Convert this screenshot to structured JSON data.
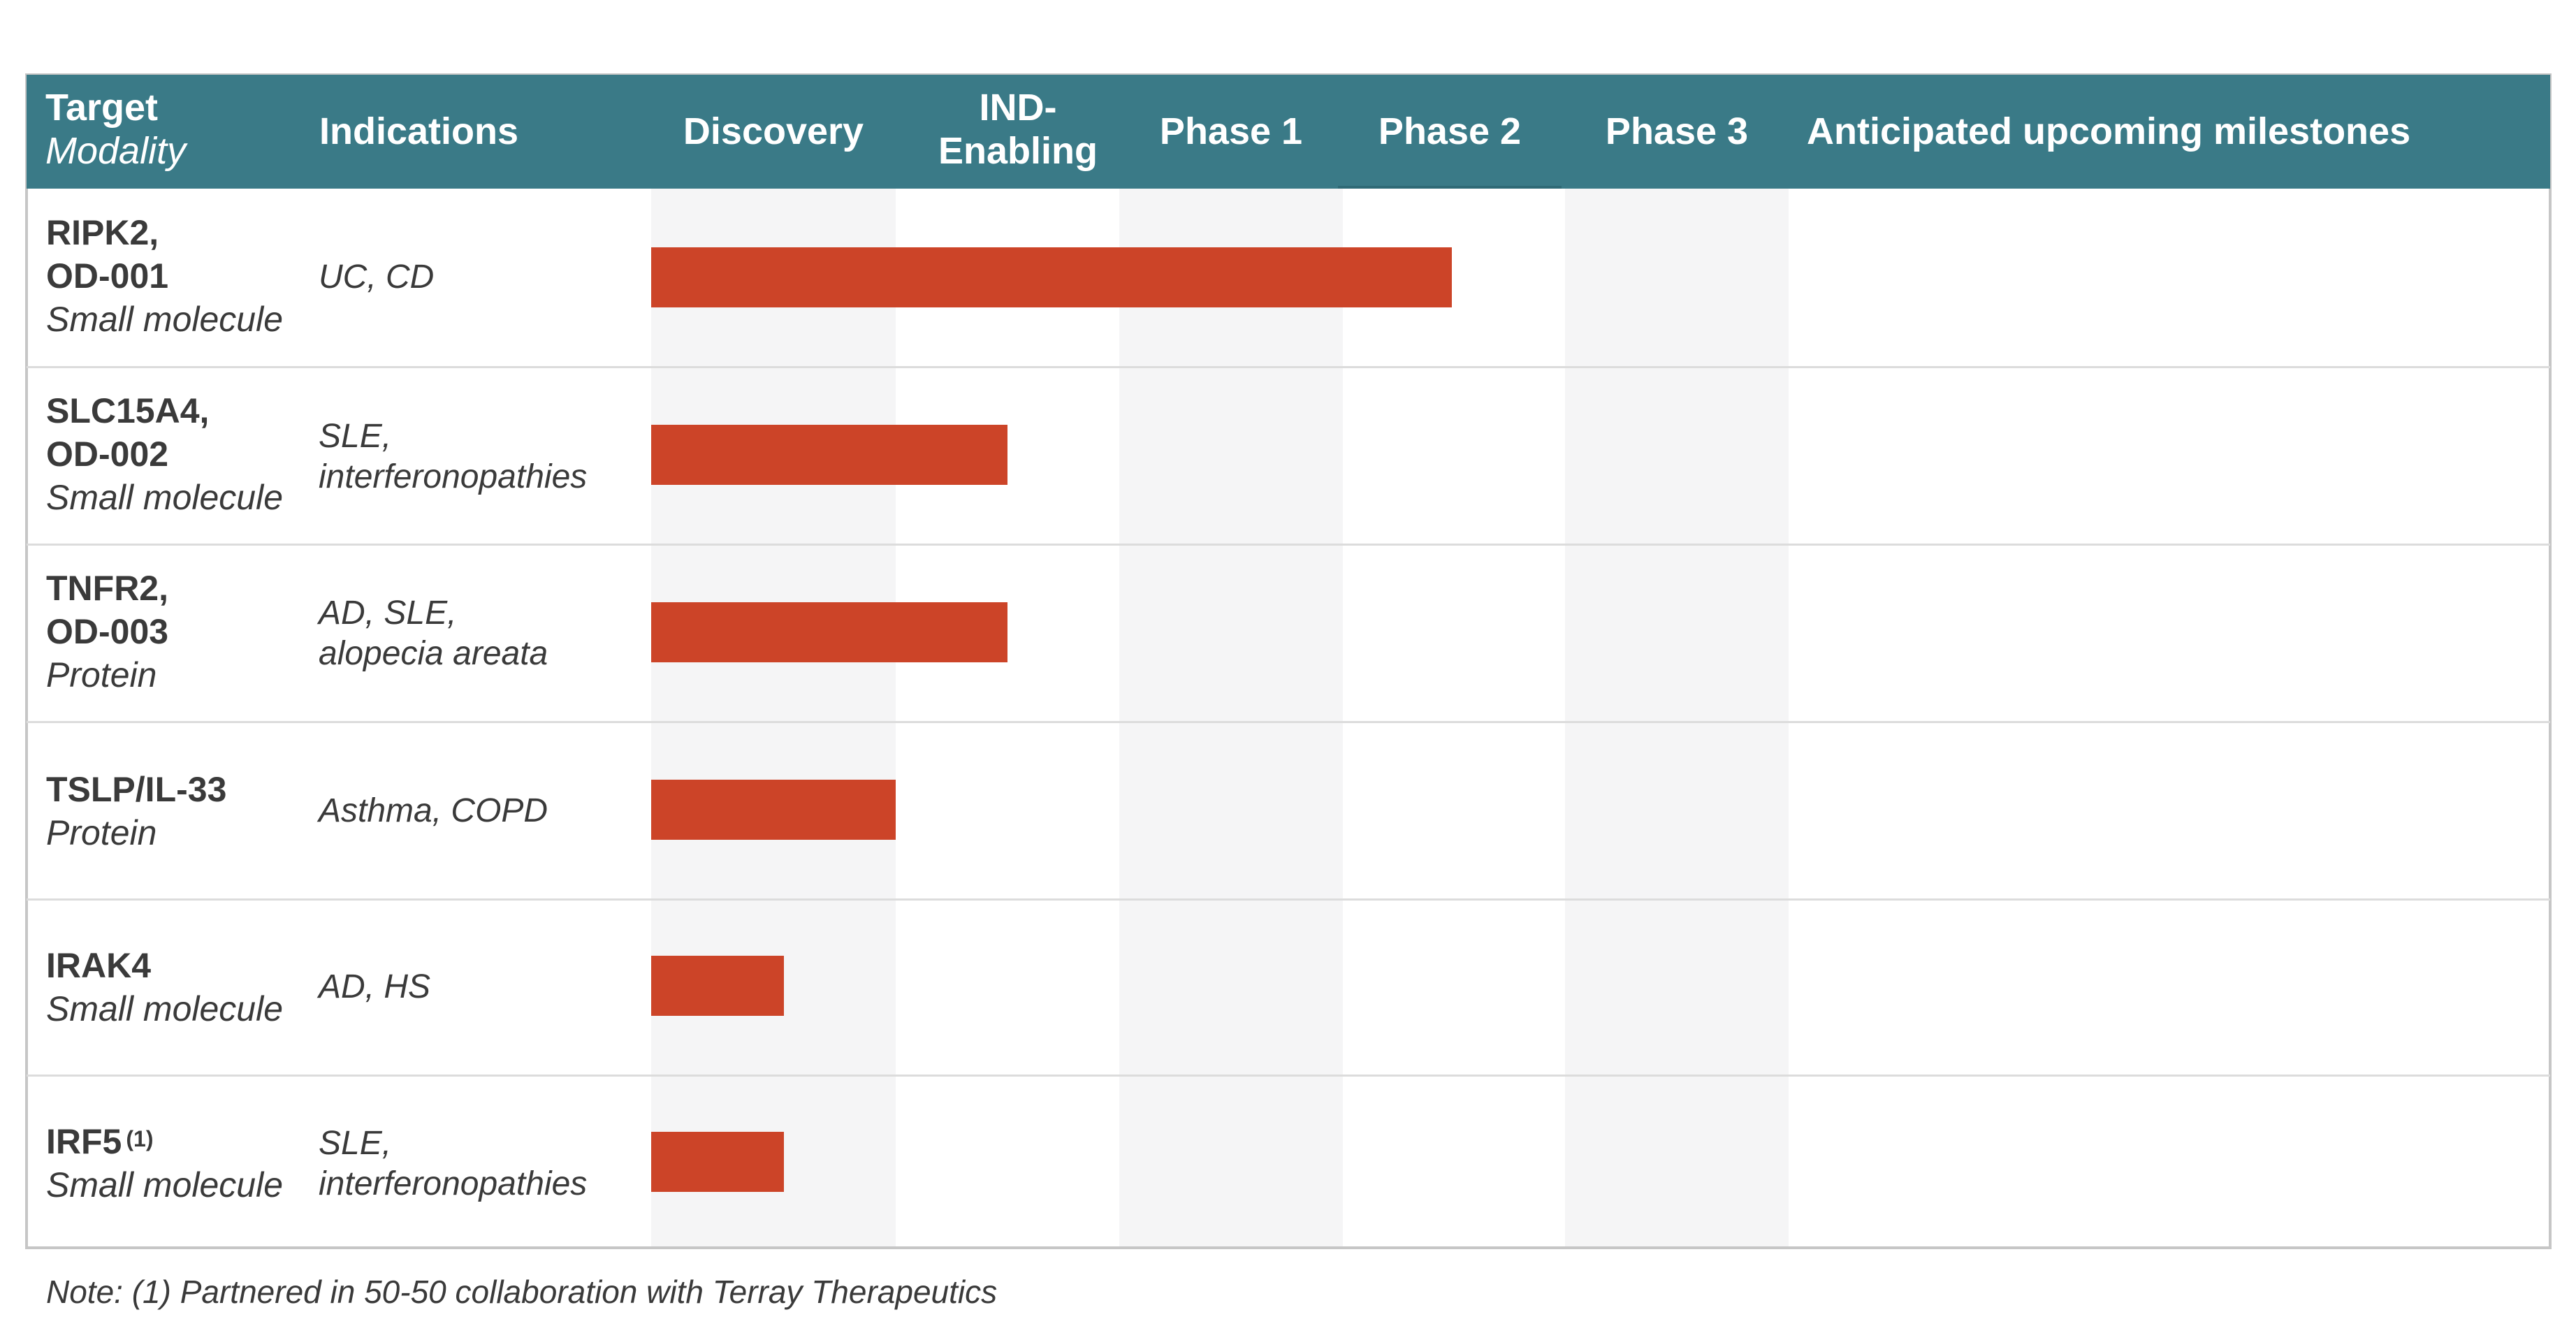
{
  "header": {
    "target_label": "Target",
    "modality_label": "Modality",
    "indications_label": "Indications",
    "stages": [
      "Discovery",
      "IND-",
      "Enabling",
      "Phase 1",
      "Phase 2",
      "Phase 3"
    ],
    "milestones_label": "Anticipated upcoming milestones"
  },
  "stage_order": [
    "Discovery",
    "IND-Enabling",
    "Phase 1",
    "Phase 2",
    "Phase 3"
  ],
  "rows": [
    {
      "target_line1": "RIPK2,",
      "target_line2": "OD-001",
      "modality": "Small molecule",
      "indication_line1": "UC, CD",
      "indication_line2": "",
      "progress_to_stage": "Phase 2"
    },
    {
      "target_line1": "SLC15A4,",
      "target_line2": "OD-002",
      "modality": "Small molecule",
      "indication_line1": "SLE,",
      "indication_line2": "interferonopathies",
      "progress_to_stage": "IND-Enabling"
    },
    {
      "target_line1": "TNFR2,",
      "target_line2": "OD-003",
      "modality": "Protein",
      "indication_line1": "AD, SLE,",
      "indication_line2": "alopecia areata",
      "progress_to_stage": "IND-Enabling"
    },
    {
      "target_line1": "TSLP/IL-33",
      "target_line2": "",
      "modality": "Protein",
      "indication_line1": "Asthma, COPD",
      "indication_line2": "",
      "progress_to_stage": "Discovery"
    },
    {
      "target_line1": "IRAK4",
      "target_line2": "",
      "modality": "Small molecule",
      "indication_line1": "AD, HS",
      "indication_line2": "",
      "progress_to_stage": "Discovery (partial)"
    },
    {
      "target_line1": "IRF5",
      "target_sup": "(1)",
      "target_line2": "",
      "modality": "Small molecule",
      "indication_line1": "SLE,",
      "indication_line2": "interferonopathies",
      "progress_to_stage": "Discovery (partial)"
    }
  ],
  "colors": {
    "header_bg": "#3a7a87",
    "bar": "#cc4428",
    "stage_shade": "#f5f5f6"
  },
  "note": "Note: (1) Partnered in 50-50 collaboration with Terray Therapeutics"
}
